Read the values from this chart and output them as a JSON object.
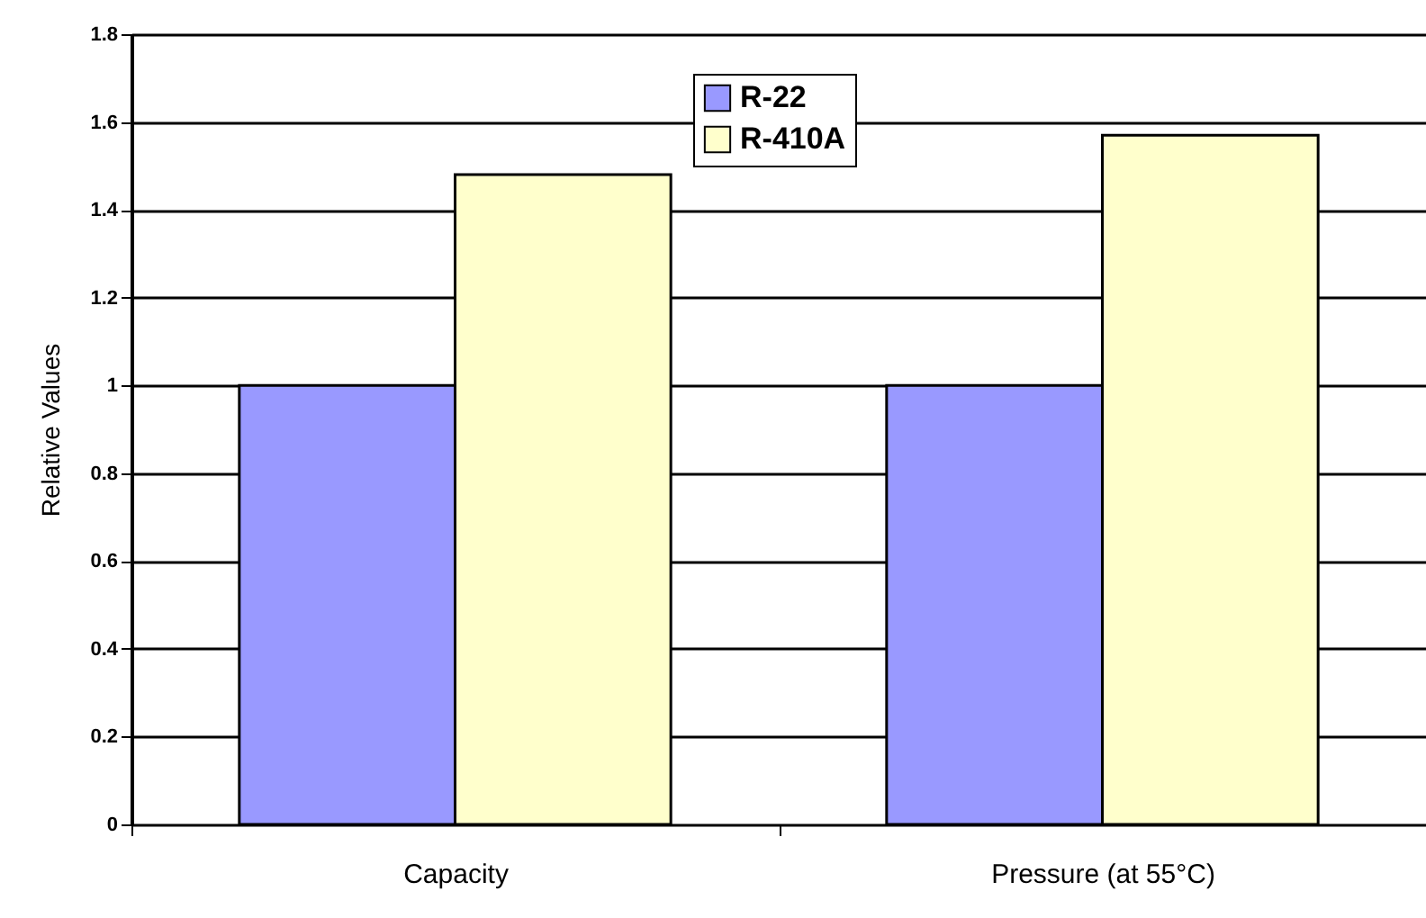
{
  "chart_data": {
    "type": "bar",
    "ylabel": "Relative Values",
    "categories": [
      "Capacity",
      "Pressure (at 55°C)"
    ],
    "series": [
      {
        "name": "R-22",
        "color": "#9999ff",
        "values": [
          1,
          1
        ]
      },
      {
        "name": "R-410A",
        "color": "#ffffcc",
        "values": [
          1.48,
          1.57
        ]
      }
    ],
    "ylim": [
      0,
      1.8
    ],
    "yticks": [
      0,
      0.2,
      0.4,
      0.6,
      0.8,
      1,
      1.2,
      1.4,
      1.6,
      1.8
    ],
    "grid": "y",
    "legend": "top"
  }
}
